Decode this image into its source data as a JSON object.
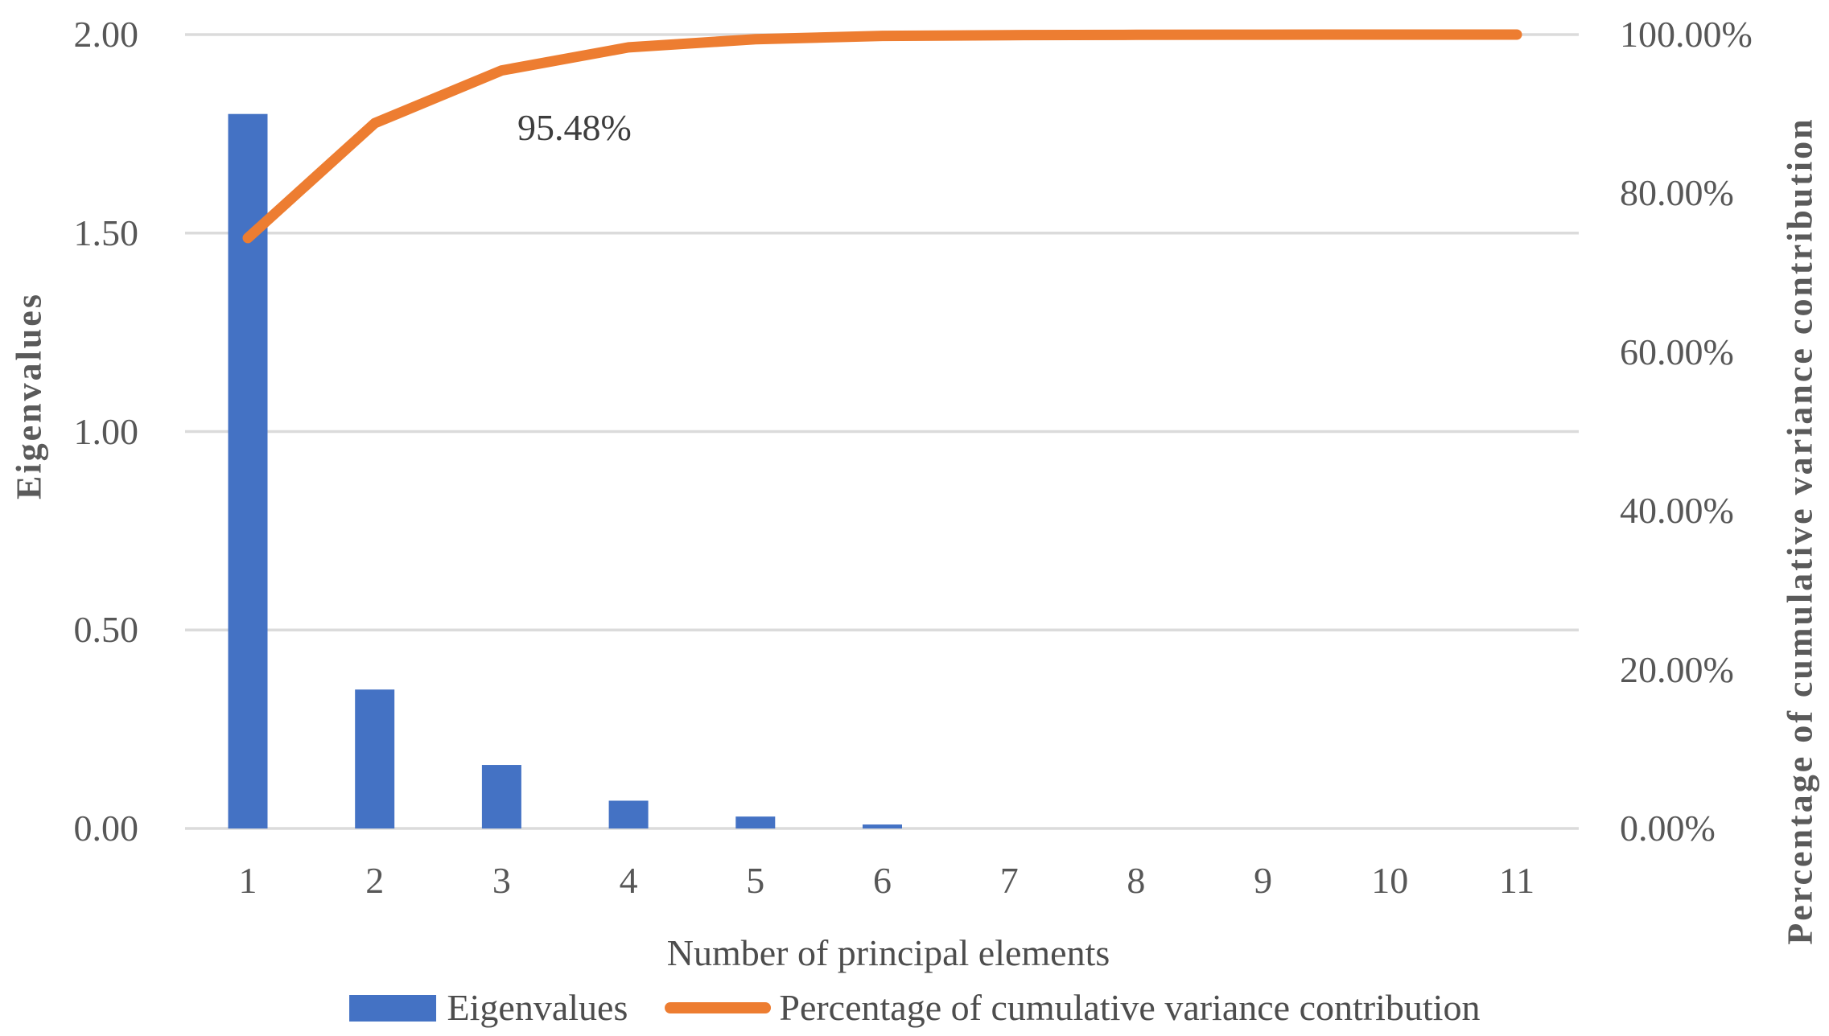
{
  "chart_data": {
    "type": "combo",
    "title": "",
    "categories": [
      "1",
      "2",
      "3",
      "4",
      "5",
      "6",
      "7",
      "8",
      "9",
      "10",
      "11"
    ],
    "series": [
      {
        "name": "Eigenvalues",
        "type": "bar",
        "axis": "left",
        "color": "#4472C4",
        "values": [
          1.8,
          0.35,
          0.16,
          0.07,
          0.03,
          0.01,
          0.0,
          0.0,
          0.0,
          0.0,
          0.0
        ]
      },
      {
        "name": "Percentage of cumulative variance contribution",
        "type": "line",
        "axis": "right",
        "color": "#ED7D31",
        "values": [
          74.38,
          88.84,
          95.48,
          98.39,
          99.42,
          99.83,
          99.93,
          99.97,
          99.99,
          100.0,
          100.0
        ]
      }
    ],
    "xlabel": "Number of principal elements",
    "ylabel_left": "Eigenvalues",
    "ylabel_right": "Percentage of cumulative variance contribution",
    "left_axis": {
      "range": [
        0,
        2
      ],
      "tick_values": [
        0,
        0.5,
        1.0,
        1.5,
        2.0
      ],
      "tick_labels": [
        "0.00",
        "0.50",
        "1.00",
        "1.50",
        "2.00"
      ]
    },
    "right_axis": {
      "range": [
        0,
        100
      ],
      "tick_values": [
        0,
        20,
        40,
        60,
        80,
        100
      ],
      "tick_labels": [
        "0.00%",
        "20.00%",
        "40.00%",
        "60.00%",
        "80.00%",
        "100.00%"
      ]
    },
    "annotation": {
      "text": "95.48%",
      "attached_to_category": "3"
    },
    "grid": "horizontal",
    "legend_position": "bottom",
    "colors": {
      "bar": "#4472C4",
      "line": "#ED7D31",
      "gridline": "#DBDBDB",
      "tick_text": "#575757",
      "annotation_text": "#3D3D3D"
    }
  },
  "legend": {
    "items": [
      {
        "label": "Eigenvalues"
      },
      {
        "label": "Percentage of cumulative variance contribution"
      }
    ]
  }
}
